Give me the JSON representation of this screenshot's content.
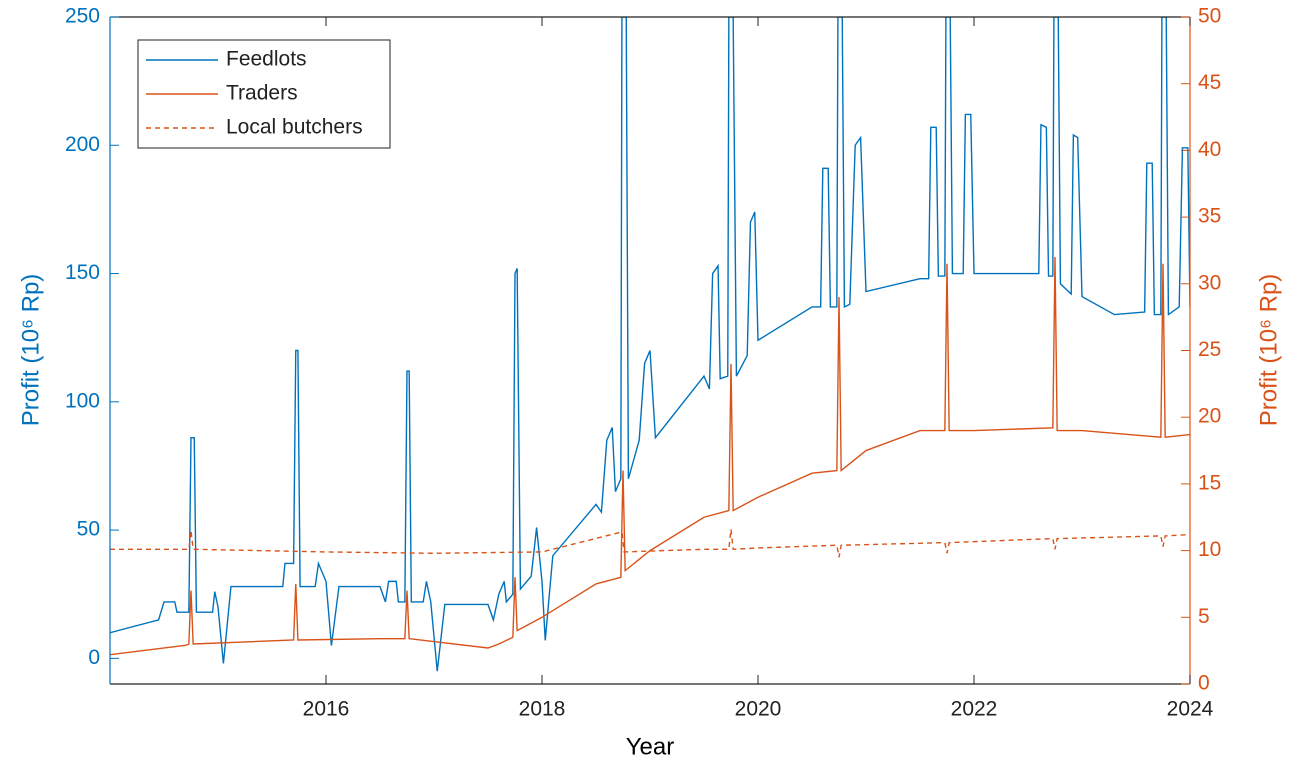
{
  "chart_data": {
    "type": "line",
    "x_label": "Year",
    "y_label": "Profit (10⁶ Rp)",
    "y2_label": "Profit (10⁶ Rp)",
    "xlim": [
      2014,
      2024
    ],
    "xticks": [
      2016,
      2018,
      2020,
      2022,
      2024
    ],
    "ylim": [
      -10,
      250
    ],
    "yticks": [
      0,
      50,
      100,
      150,
      200,
      250
    ],
    "y2lim": [
      0,
      50
    ],
    "y2ticks": [
      0,
      5,
      10,
      15,
      20,
      25,
      30,
      35,
      40,
      45,
      50
    ],
    "y_color": "#0072BD",
    "y2_color": "#D95319",
    "legend": "upper left",
    "grid": false,
    "series": [
      {
        "name": "Feedlots",
        "color": "#0072BD",
        "linestyle": "solid",
        "x": [
          2014.0,
          2014.45,
          2014.5,
          2014.6,
          2014.62,
          2014.73,
          2014.75,
          2014.78,
          2014.8,
          2014.95,
          2014.97,
          2015.0,
          2015.05,
          2015.12,
          2015.6,
          2015.62,
          2015.7,
          2015.72,
          2015.74,
          2015.76,
          2015.9,
          2015.93,
          2016.0,
          2016.05,
          2016.12,
          2016.5,
          2016.55,
          2016.58,
          2016.65,
          2016.67,
          2016.73,
          2016.75,
          2016.77,
          2016.79,
          2016.9,
          2016.93,
          2016.97,
          2017.03,
          2017.1,
          2017.5,
          2017.55,
          2017.6,
          2017.65,
          2017.67,
          2017.73,
          2017.75,
          2017.77,
          2017.8,
          2017.9,
          2017.95,
          2018.0,
          2018.03,
          2018.1,
          2018.5,
          2018.55,
          2018.6,
          2018.65,
          2018.68,
          2018.73,
          2018.74,
          2018.78,
          2018.8,
          2018.9,
          2018.95,
          2019.0,
          2019.05,
          2019.5,
          2019.55,
          2019.58,
          2019.63,
          2019.65,
          2019.72,
          2019.73,
          2019.77,
          2019.8,
          2019.9,
          2019.93,
          2019.97,
          2020.0,
          2020.5,
          2020.58,
          2020.6,
          2020.65,
          2020.67,
          2020.73,
          2020.74,
          2020.78,
          2020.8,
          2020.85,
          2020.9,
          2020.95,
          2021.0,
          2021.5,
          2021.58,
          2021.6,
          2021.65,
          2021.67,
          2021.73,
          2021.74,
          2021.78,
          2021.8,
          2021.9,
          2021.92,
          2021.97,
          2022.0,
          2022.6,
          2022.62,
          2022.67,
          2022.69,
          2022.73,
          2022.74,
          2022.78,
          2022.8,
          2022.9,
          2022.92,
          2022.96,
          2023.0,
          2023.3,
          2023.58,
          2023.6,
          2023.65,
          2023.67,
          2023.73,
          2023.74,
          2023.78,
          2023.8,
          2023.9,
          2023.93,
          2023.98,
          2024.0
        ],
        "values": [
          10,
          15,
          22,
          22,
          18,
          18,
          86,
          86,
          18,
          18,
          26,
          20,
          -2,
          28,
          28,
          37,
          37,
          120,
          120,
          28,
          28,
          37,
          30,
          5,
          28,
          28,
          22,
          30,
          30,
          22,
          22,
          112,
          112,
          22,
          22,
          30,
          22,
          -5,
          21,
          21,
          15,
          25,
          30,
          22,
          25,
          150,
          152,
          27,
          32,
          51,
          30,
          7,
          40,
          60,
          57,
          85,
          90,
          65,
          70,
          250,
          250,
          70,
          85,
          115,
          120,
          86,
          110,
          105,
          150,
          153,
          109,
          110,
          250,
          250,
          110,
          118,
          170,
          174,
          124,
          137,
          137,
          191,
          191,
          137,
          137,
          250,
          250,
          137,
          138,
          200,
          203,
          143,
          148,
          148,
          207,
          207,
          149,
          149,
          250,
          250,
          150,
          150,
          212,
          212,
          150,
          150,
          208,
          207,
          149,
          149,
          250,
          250,
          146,
          142,
          204,
          203,
          141,
          134,
          135,
          193,
          193,
          134,
          134,
          250,
          250,
          134,
          137,
          199,
          199,
          137
        ]
      },
      {
        "name": "Traders",
        "color": "#D95319",
        "linestyle": "solid",
        "axis": "y2",
        "x": [
          2014,
          2014.7,
          2014.73,
          2014.75,
          2014.77,
          2015.7,
          2015.72,
          2015.74,
          2016.5,
          2016.73,
          2016.75,
          2016.77,
          2017.5,
          2017.6,
          2017.73,
          2017.75,
          2017.77,
          2018.0,
          2018.5,
          2018.73,
          2018.75,
          2018.77,
          2019.0,
          2019.5,
          2019.73,
          2019.75,
          2019.77,
          2020.0,
          2020.5,
          2020.73,
          2020.75,
          2020.77,
          2021.0,
          2021.5,
          2021.73,
          2021.75,
          2021.77,
          2022.0,
          2022.73,
          2022.75,
          2022.77,
          2023.0,
          2023.73,
          2023.75,
          2023.77,
          2024
        ],
        "values": [
          2.2,
          2.9,
          3,
          7,
          3,
          3.3,
          7.5,
          3.3,
          3.4,
          3.4,
          7,
          3.4,
          2.7,
          3,
          3.5,
          8,
          4,
          5,
          7.5,
          8,
          16,
          8.5,
          10,
          12.5,
          13,
          24,
          13,
          14,
          15.8,
          16,
          29,
          16,
          17.5,
          19,
          19,
          31.5,
          19,
          19,
          19.2,
          32,
          19,
          19,
          18.5,
          31.5,
          18.5,
          18.7
        ]
      },
      {
        "name": "Local butchers",
        "color": "#D95319",
        "linestyle": "dashed",
        "axis": "y2",
        "x": [
          2014,
          2014.73,
          2014.75,
          2014.77,
          2016,
          2017,
          2018,
          2018.74,
          2018.76,
          2019.5,
          2019.73,
          2019.75,
          2019.77,
          2020,
          2020.73,
          2020.75,
          2020.77,
          2021.73,
          2021.75,
          2021.77,
          2022.73,
          2022.75,
          2022.77,
          2023.73,
          2023.75,
          2023.77,
          2024
        ],
        "values": [
          10.1,
          10.1,
          11.5,
          10.1,
          9.9,
          9.8,
          9.9,
          11.4,
          9.9,
          10.1,
          10.1,
          11.6,
          10.1,
          10.2,
          10.4,
          9.5,
          10.4,
          10.6,
          9.8,
          10.6,
          10.9,
          10.1,
          10.9,
          11.1,
          10.3,
          11.1,
          11.2
        ]
      }
    ]
  }
}
